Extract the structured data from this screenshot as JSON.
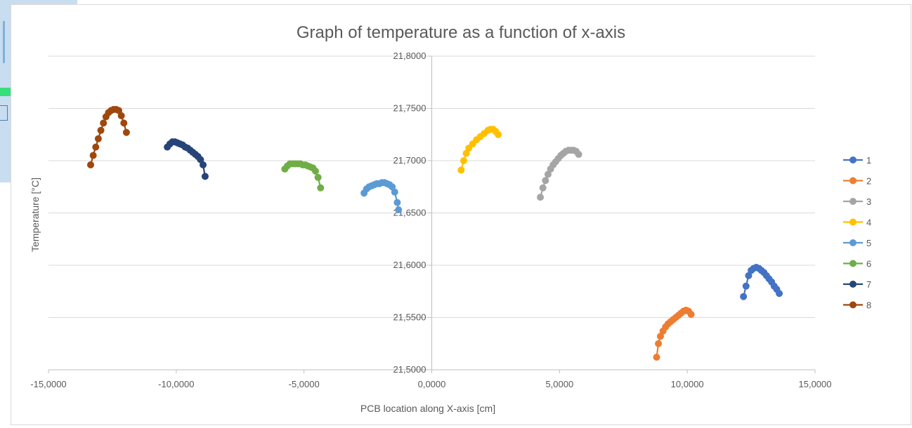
{
  "chart_data": {
    "type": "scatter",
    "title": "Graph of temperature as a function of x-axis",
    "xlabel": "PCB location along X-axis [cm]",
    "ylabel": "Temperature [°C]",
    "xlim": [
      -15,
      15
    ],
    "ylim": [
      21.5,
      21.8
    ],
    "x_ticks": [
      -15,
      -10,
      -5,
      0,
      5,
      10,
      15
    ],
    "y_ticks": [
      21.5,
      21.55,
      21.6,
      21.65,
      21.7,
      21.75,
      21.8
    ],
    "x_tick_labels": [
      "-15,0000",
      "-10,0000",
      "-5,0000",
      "0,0000",
      "5,0000",
      "10,0000",
      "15,0000"
    ],
    "y_tick_labels": [
      "21,5000",
      "21,5500",
      "21,6000",
      "21,6500",
      "21,7000",
      "21,7500",
      "21,8000"
    ],
    "grid": "horizontal",
    "y_axis_crosses_at_x": 0,
    "legend_position": "right",
    "series": [
      {
        "name": "1",
        "color": "#4472c4",
        "x": [
          12.2,
          12.3,
          12.4,
          12.5,
          12.6,
          12.7,
          12.8,
          12.9,
          13.0,
          13.1,
          13.2,
          13.3,
          13.4,
          13.5,
          13.6
        ],
        "y": [
          21.57,
          21.58,
          21.59,
          21.595,
          21.597,
          21.598,
          21.597,
          21.595,
          21.593,
          21.59,
          21.587,
          21.584,
          21.58,
          21.577,
          21.573
        ]
      },
      {
        "name": "2",
        "color": "#ed7d31",
        "x": [
          8.8,
          8.87,
          8.95,
          9.05,
          9.15,
          9.25,
          9.35,
          9.45,
          9.55,
          9.65,
          9.75,
          9.85,
          9.95,
          10.05,
          10.15
        ],
        "y": [
          21.512,
          21.525,
          21.532,
          21.537,
          21.541,
          21.544,
          21.546,
          21.548,
          21.55,
          21.552,
          21.554,
          21.556,
          21.557,
          21.556,
          21.553
        ]
      },
      {
        "name": "3",
        "color": "#a5a5a5",
        "x": [
          4.25,
          4.35,
          4.45,
          4.55,
          4.65,
          4.75,
          4.85,
          4.95,
          5.05,
          5.15,
          5.25,
          5.35,
          5.45,
          5.55,
          5.65,
          5.75
        ],
        "y": [
          21.665,
          21.674,
          21.681,
          21.687,
          21.692,
          21.696,
          21.699,
          21.702,
          21.705,
          21.707,
          21.709,
          21.71,
          21.71,
          21.71,
          21.709,
          21.706
        ]
      },
      {
        "name": "4",
        "color": "#ffc000",
        "x": [
          1.15,
          1.25,
          1.35,
          1.45,
          1.6,
          1.75,
          1.9,
          2.05,
          2.2,
          2.3,
          2.4,
          2.5,
          2.6
        ],
        "y": [
          21.691,
          21.7,
          21.707,
          21.712,
          21.716,
          21.72,
          21.723,
          21.726,
          21.729,
          21.73,
          21.73,
          21.728,
          21.725
        ]
      },
      {
        "name": "5",
        "color": "#5b9bd5",
        "x": [
          -2.65,
          -2.55,
          -2.45,
          -2.35,
          -2.25,
          -2.15,
          -2.05,
          -1.95,
          -1.85,
          -1.75,
          -1.65,
          -1.55,
          -1.45,
          -1.35,
          -1.3
        ],
        "y": [
          21.669,
          21.673,
          21.675,
          21.676,
          21.677,
          21.678,
          21.678,
          21.679,
          21.679,
          21.678,
          21.677,
          21.675,
          21.67,
          21.66,
          21.653
        ]
      },
      {
        "name": "6",
        "color": "#70ad47",
        "x": [
          -5.75,
          -5.65,
          -5.55,
          -5.45,
          -5.35,
          -5.25,
          -5.15,
          -5.05,
          -4.95,
          -4.85,
          -4.75,
          -4.65,
          -4.55,
          -4.45,
          -4.35
        ],
        "y": [
          21.692,
          21.695,
          21.697,
          21.697,
          21.697,
          21.697,
          21.697,
          21.696,
          21.696,
          21.695,
          21.694,
          21.693,
          21.69,
          21.684,
          21.674
        ]
      },
      {
        "name": "7",
        "color": "#264478",
        "x": [
          -10.35,
          -10.25,
          -10.15,
          -10.05,
          -9.95,
          -9.85,
          -9.75,
          -9.65,
          -9.55,
          -9.45,
          -9.35,
          -9.25,
          -9.15,
          -9.05,
          -8.95,
          -8.87
        ],
        "y": [
          21.713,
          21.716,
          21.718,
          21.718,
          21.717,
          21.716,
          21.715,
          21.713,
          21.712,
          21.71,
          21.708,
          21.706,
          21.704,
          21.701,
          21.696,
          21.685
        ]
      },
      {
        "name": "8",
        "color": "#9e480e",
        "x": [
          -13.35,
          -13.25,
          -13.15,
          -13.05,
          -12.95,
          -12.85,
          -12.75,
          -12.65,
          -12.55,
          -12.45,
          -12.35,
          -12.25,
          -12.15,
          -12.05,
          -11.95
        ],
        "y": [
          21.696,
          21.705,
          21.713,
          21.721,
          21.729,
          21.736,
          21.742,
          21.746,
          21.748,
          21.749,
          21.749,
          21.748,
          21.743,
          21.736,
          21.727
        ]
      }
    ]
  }
}
